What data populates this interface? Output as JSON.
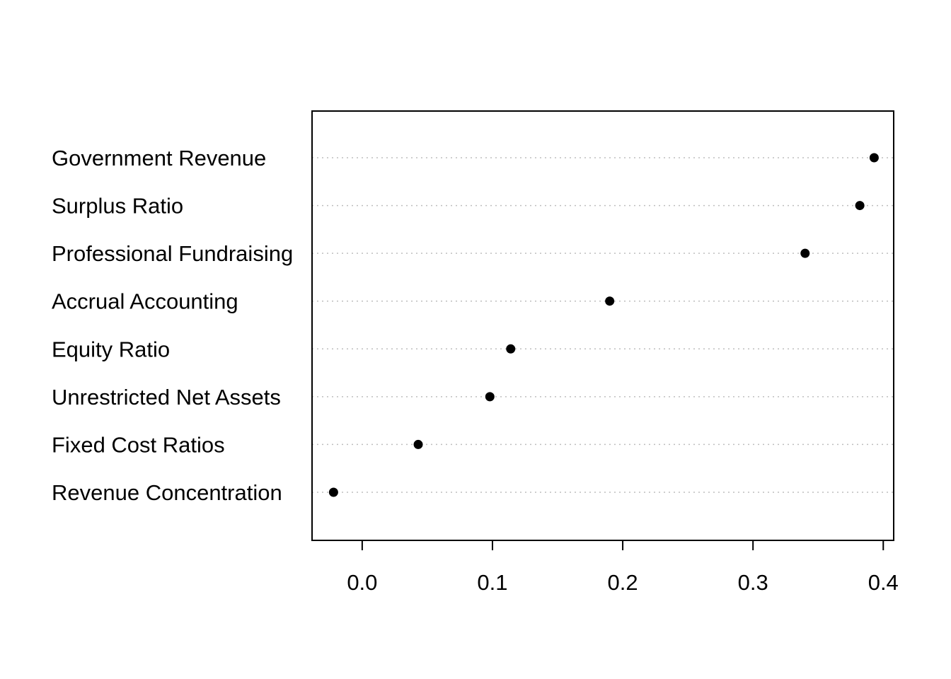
{
  "chart_data": {
    "type": "scatter",
    "subtype": "dotchart",
    "title": "",
    "xlabel": "",
    "ylabel": "",
    "categories": [
      "Revenue Concentration",
      "Fixed Cost Ratios",
      "Unrestricted Net Assets",
      "Equity Ratio",
      "Accrual Accounting",
      "Professional Fundraising",
      "Surplus Ratio",
      "Government Revenue"
    ],
    "values": [
      -0.022,
      0.043,
      0.098,
      0.114,
      0.19,
      0.34,
      0.382,
      0.393
    ],
    "xlim": [
      -0.0385,
      0.408
    ],
    "x_ticks": [
      0.0,
      0.1,
      0.2,
      0.3,
      0.4
    ],
    "x_tick_labels": [
      "0.0",
      "0.1",
      "0.2",
      "0.3",
      "0.4"
    ],
    "grid": "dotted horizontal guide lines",
    "legend": "none",
    "colors": {
      "points": "#000000",
      "guides": "#bebebe",
      "frame": "#000000"
    }
  }
}
